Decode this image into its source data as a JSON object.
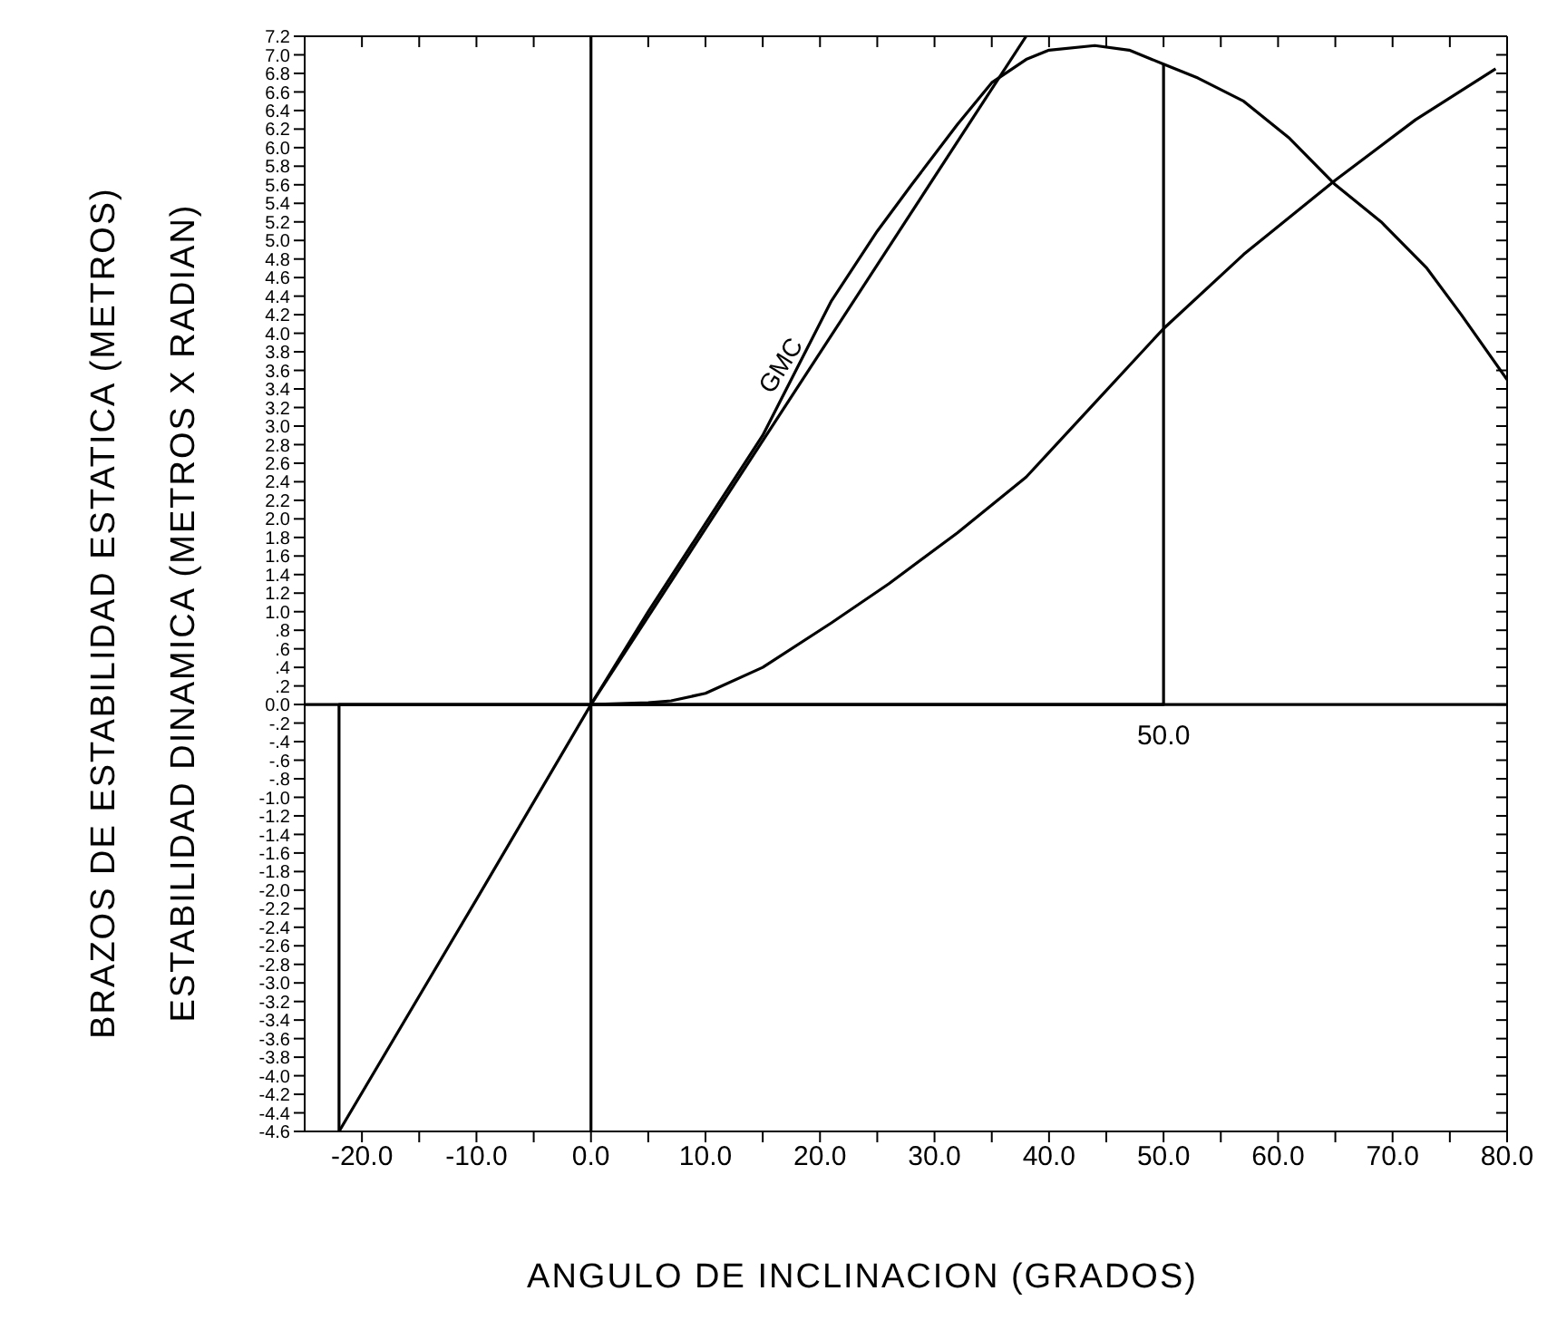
{
  "chart_data": {
    "type": "line",
    "xlabel": "ANGULO DE INCLINACION (GRADOS)",
    "ylabel": "BRAZOS DE ESTABILIDAD ESTATICA (METROS)",
    "y2label": "ESTABILIDAD DINAMICA (METROS X RADIAN)",
    "xlim": [
      -25,
      80
    ],
    "xticks": [
      {
        "value": -20,
        "label": "-20.0"
      },
      {
        "value": -15,
        "label": null
      },
      {
        "value": -10,
        "label": "-10.0"
      },
      {
        "value": -5,
        "label": null
      },
      {
        "value": 0,
        "label": "0.0"
      },
      {
        "value": 5,
        "label": null
      },
      {
        "value": 10,
        "label": "10.0"
      },
      {
        "value": 15,
        "label": null
      },
      {
        "value": 20,
        "label": "20.0"
      },
      {
        "value": 25,
        "label": null
      },
      {
        "value": 30,
        "label": "30.0"
      },
      {
        "value": 35,
        "label": null
      },
      {
        "value": 40,
        "label": "40.0"
      },
      {
        "value": 45,
        "label": null
      },
      {
        "value": 50,
        "label": "50.0"
      },
      {
        "value": 55,
        "label": null
      },
      {
        "value": 60,
        "label": "60.0"
      },
      {
        "value": 65,
        "label": null
      },
      {
        "value": 70,
        "label": "70.0"
      },
      {
        "value": 75,
        "label": null
      },
      {
        "value": 80,
        "label": "80.0"
      }
    ],
    "ylim": [
      -4.6,
      7.2
    ],
    "yticks": [
      -4.6,
      -4.4,
      -4.2,
      {
        "value": -4,
        "label": "-4.0"
      },
      -3.8,
      -3.6,
      -3.4,
      -3.2,
      {
        "value": -3,
        "label": "-3.0"
      },
      -2.8,
      -2.6,
      -2.4,
      -2.2,
      {
        "value": -2,
        "label": "-2.0"
      },
      -1.8,
      -1.6,
      -1.4,
      -1.2,
      {
        "value": -1,
        "label": "-1.0"
      },
      {
        "value": -0.8,
        "label": "-.8"
      },
      {
        "value": -0.6,
        "label": "-.6"
      },
      {
        "value": -0.4,
        "label": "-.4"
      },
      {
        "value": -0.2,
        "label": "-.2"
      },
      {
        "value": 0,
        "label": "0.0"
      },
      {
        "value": 0.2,
        "label": ".2"
      },
      {
        "value": 0.4,
        "label": ".4"
      },
      {
        "value": 0.6,
        "label": ".6"
      },
      {
        "value": 0.8,
        "label": ".8"
      },
      {
        "value": 1,
        "label": "1.0"
      },
      1.2,
      1.4,
      1.6,
      1.8,
      {
        "value": 2,
        "label": "2.0"
      },
      2.2,
      2.4,
      2.6,
      2.8,
      {
        "value": 3,
        "label": "3.0"
      },
      3.2,
      3.4,
      3.6,
      3.8,
      {
        "value": 4,
        "label": "4.0"
      },
      4.2,
      4.4,
      4.6,
      4.8,
      {
        "value": 5,
        "label": "5.0"
      },
      5.2,
      5.4,
      5.6,
      5.8,
      {
        "value": 6,
        "label": "6.0"
      },
      6.2,
      6.4,
      6.6,
      6.8,
      {
        "value": 7,
        "label": "7.0"
      },
      7.2
    ],
    "series": [
      {
        "color": "#000000",
        "x": [
          -22,
          -10,
          0,
          5,
          10,
          15,
          21,
          25,
          28,
          32,
          35,
          38,
          40,
          44,
          47,
          50,
          53,
          57,
          61,
          65,
          69,
          73,
          76,
          80
        ],
        "values": [
          -4.6,
          -2.1,
          0,
          1.0,
          1.95,
          2.9,
          4.35,
          5.1,
          5.6,
          6.25,
          6.7,
          6.95,
          7.05,
          7.1,
          7.05,
          6.9,
          6.75,
          6.5,
          6.1,
          5.6,
          5.2,
          4.7,
          4.2,
          3.5
        ]
      },
      {
        "color": "#000000",
        "x": [
          0,
          5,
          7,
          10,
          15,
          21,
          26,
          32,
          38,
          44,
          50,
          57,
          65,
          72,
          79
        ],
        "values": [
          0,
          0.02,
          0.04,
          0.12,
          0.4,
          0.88,
          1.3,
          1.85,
          2.45,
          3.25,
          4.05,
          4.85,
          5.65,
          6.3,
          6.85
        ]
      },
      {
        "name": "GMC",
        "color": "#000000",
        "x": [
          0,
          38
        ],
        "values": [
          0,
          7.2
        ]
      },
      {
        "color": "#000000",
        "x": [
          -22,
          -22,
          50,
          50
        ],
        "values": [
          -4.6,
          0,
          0,
          6.9
        ]
      },
      {
        "color": "#000000",
        "x": [
          0,
          0
        ],
        "values": [
          -4.6,
          7.2
        ]
      },
      {
        "color": "#000000",
        "x": [
          -25,
          80
        ],
        "values": [
          0,
          0
        ]
      }
    ],
    "annotations": [
      {
        "text": "50.0",
        "x": 50,
        "y": 0
      }
    ],
    "line_style": "solid",
    "marker": "none"
  }
}
